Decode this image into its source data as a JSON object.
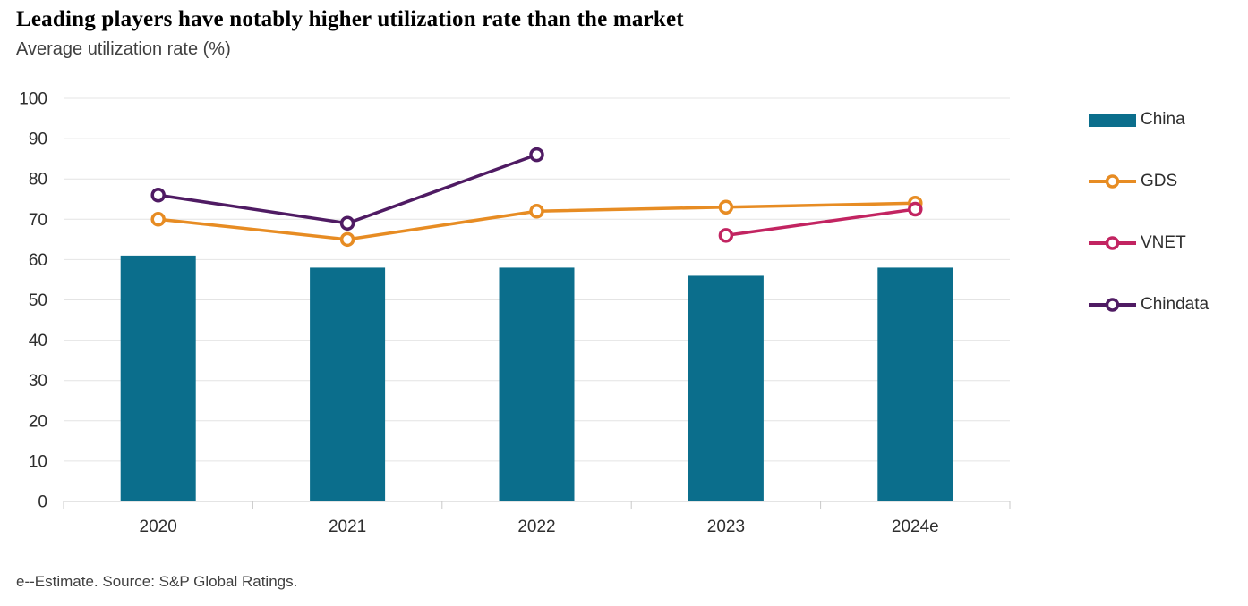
{
  "header": {
    "title": "Leading players have notably higher utilization rate than the market",
    "subtitle": "Average utilization rate (%)"
  },
  "footer": {
    "note": "e--Estimate. Source: S&P Global Ratings."
  },
  "colors": {
    "grid": "#e4e4e4",
    "axis": "#c9c9c9",
    "tick_text": "#2e2e2e",
    "background": "#ffffff"
  },
  "chart_data": {
    "type": "bar+line",
    "title": "Leading players have notably higher utilization rate than the market",
    "subtitle": "Average utilization rate (%)",
    "categories": [
      "2020",
      "2021",
      "2022",
      "2023",
      "2024e"
    ],
    "series": [
      {
        "name": "China",
        "type": "bar",
        "color": "#0b6e8c",
        "values": [
          61,
          58,
          58,
          56,
          58
        ]
      },
      {
        "name": "GDS",
        "type": "line",
        "color": "#e78c23",
        "values": [
          70,
          65,
          72,
          73,
          74
        ]
      },
      {
        "name": "VNET",
        "type": "line",
        "color": "#c22461",
        "values": [
          null,
          null,
          null,
          66,
          72.5
        ]
      },
      {
        "name": "Chindata",
        "type": "line",
        "color": "#4f1b63",
        "values": [
          76,
          69,
          86,
          null,
          null
        ]
      }
    ],
    "ylabel": "",
    "xlabel": "",
    "ylim": [
      0,
      100
    ],
    "ytick_step": 10,
    "grid": true,
    "legend_position": "right"
  }
}
